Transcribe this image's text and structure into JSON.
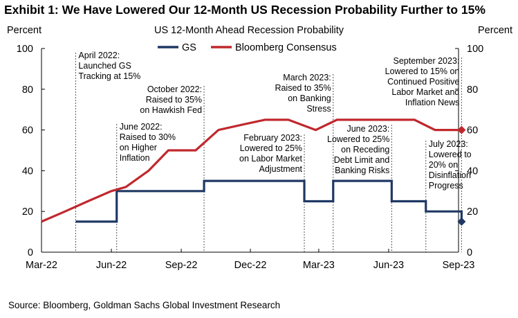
{
  "exhibit_title": "Exhibit 1: We Have Lowered Our 12-Month US Recession Probability Further to 15%",
  "source": "Source: Bloomberg, Goldman Sachs Global Investment Research",
  "colors": {
    "gs": "#1f3864",
    "consensus": "#c0282d",
    "axis": "#000000",
    "guide": "#555555"
  },
  "chart_data": {
    "type": "line",
    "title": "US 12-Month  Ahead  Recession Probability",
    "left_unit": "Percent",
    "right_unit": "Percent",
    "ylim": [
      0,
      100
    ],
    "yticks": [
      0,
      20,
      40,
      60,
      80,
      100
    ],
    "xticks": [
      {
        "label": "Mar-22",
        "x": "2022-03-01"
      },
      {
        "label": "Jun-22",
        "x": "2022-06-01"
      },
      {
        "label": "Sep-22",
        "x": "2022-09-01"
      },
      {
        "label": "Dec-22",
        "x": "2022-12-01"
      },
      {
        "label": "Mar-23",
        "x": "2023-03-01"
      },
      {
        "label": "Jun-23",
        "x": "2023-06-01"
      },
      {
        "label": "Sep-23",
        "x": "2023-09-01"
      }
    ],
    "legend": [
      "GS",
      "Bloomberg Consensus"
    ],
    "series": [
      {
        "name": "GS",
        "step": true,
        "points": [
          {
            "x": "2022-04-15",
            "y": 15
          },
          {
            "x": "2022-06-08",
            "y": 30
          },
          {
            "x": "2022-10-01",
            "y": 35
          },
          {
            "x": "2023-02-10",
            "y": 25
          },
          {
            "x": "2023-03-20",
            "y": 35
          },
          {
            "x": "2023-06-05",
            "y": 25
          },
          {
            "x": "2023-07-20",
            "y": 20
          },
          {
            "x": "2023-09-01",
            "y": 20
          }
        ],
        "last": {
          "x": "2023-09-05",
          "y": 15
        }
      },
      {
        "name": "Bloomberg Consensus",
        "step": false,
        "points": [
          {
            "x": "2022-03-01",
            "y": 15
          },
          {
            "x": "2022-04-01",
            "y": 20
          },
          {
            "x": "2022-05-01",
            "y": 25
          },
          {
            "x": "2022-06-01",
            "y": 30
          },
          {
            "x": "2022-06-20",
            "y": 32
          },
          {
            "x": "2022-07-20",
            "y": 40
          },
          {
            "x": "2022-08-15",
            "y": 50
          },
          {
            "x": "2022-09-20",
            "y": 50
          },
          {
            "x": "2022-10-20",
            "y": 60
          },
          {
            "x": "2022-11-25",
            "y": 63
          },
          {
            "x": "2022-12-20",
            "y": 65
          },
          {
            "x": "2023-01-20",
            "y": 65
          },
          {
            "x": "2023-02-25",
            "y": 60
          },
          {
            "x": "2023-03-25",
            "y": 65
          },
          {
            "x": "2023-05-01",
            "y": 65
          },
          {
            "x": "2023-06-01",
            "y": 65
          },
          {
            "x": "2023-07-05",
            "y": 65
          },
          {
            "x": "2023-08-01",
            "y": 60
          },
          {
            "x": "2023-09-01",
            "y": 60
          }
        ],
        "last": {
          "x": "2023-09-05",
          "y": 60
        }
      }
    ],
    "annotations": [
      {
        "date": "2022-04-15",
        "lines": [
          "April 2022:",
          "Launched GS",
          "Tracking at 15%"
        ],
        "align": "start"
      },
      {
        "date": "2022-06-08",
        "lines": [
          "June 2022:",
          "Raised to 30%",
          "on Higher",
          "Inflation"
        ],
        "align": "start"
      },
      {
        "date": "2022-10-01",
        "lines": [
          "October 2022:",
          "Raised to 35%",
          "on Hawkish Fed"
        ],
        "align": "end"
      },
      {
        "date": "2023-02-10",
        "lines": [
          "February 2023:",
          "Lowered to 25%",
          "on Labor Market",
          "Adjustment"
        ],
        "align": "end"
      },
      {
        "date": "2023-03-20",
        "lines": [
          "March 2023:",
          "Raised to 35%",
          "on Banking",
          "Stress"
        ],
        "align": "end"
      },
      {
        "date": "2023-06-05",
        "lines": [
          "June 2023:",
          "Lowered to 25%",
          "on Receding",
          "Debt Limit and",
          "Banking Risks"
        ],
        "align": "end"
      },
      {
        "date": "2023-07-20",
        "lines": [
          "July 2023:",
          "Lowered to",
          "20% on",
          "Disinflation",
          "Progress"
        ],
        "align": "start"
      },
      {
        "date": "2023-09-05",
        "lines": [
          "September 2023:",
          "Lowered to 15% on",
          "Continued Positive",
          "Labor Market and",
          "Inflation News"
        ],
        "align": "end"
      }
    ]
  }
}
